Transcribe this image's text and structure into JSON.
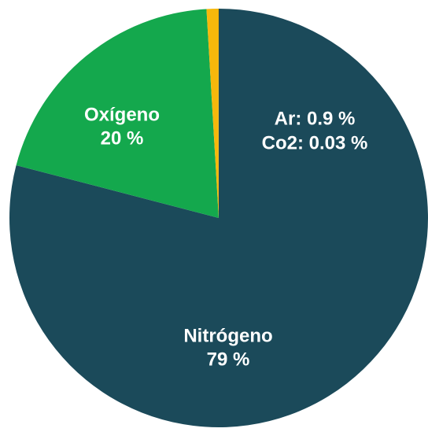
{
  "chart_data": {
    "type": "pie",
    "categories": [
      "Nitrógeno",
      "Oxígeno",
      null,
      null
    ],
    "values": [
      79,
      20,
      0.9,
      0.03
    ],
    "value_labels": [
      "79 %",
      "20 %",
      "Ar: 0.9 %",
      "Co2: 0.03 %"
    ],
    "colors": [
      "#1b4a5a",
      "#14a84d",
      "#f6b80b",
      "#e9a200"
    ]
  }
}
